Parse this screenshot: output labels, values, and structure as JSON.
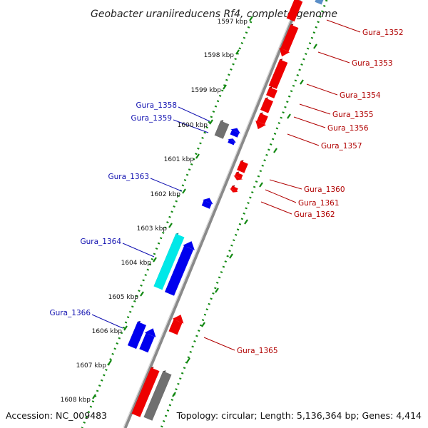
{
  "title": "Geobacter uraniireducens Rf4, complete genome",
  "footer": {
    "accession": "Accession: NC_009483",
    "summary": "Topology: circular; Length: 5,136,364 bp; Genes: 4,414"
  },
  "ticks": [
    "1597 kbp",
    "1598 kbp",
    "1599 kbp",
    "1600 kbp",
    "1601 kbp",
    "1602 kbp",
    "1603 kbp",
    "1604 kbp",
    "1605 kbp",
    "1606 kbp",
    "1607 kbp",
    "1608 kbp"
  ],
  "genes_forward": [
    {
      "label": "Gura_1352"
    },
    {
      "label": "Gura_1353"
    },
    {
      "label": "Gura_1354"
    },
    {
      "label": "Gura_1355"
    },
    {
      "label": "Gura_1356"
    },
    {
      "label": "Gura_1357"
    },
    {
      "label": "Gura_1360"
    },
    {
      "label": "Gura_1361"
    },
    {
      "label": "Gura_1362"
    },
    {
      "label": "Gura_1365"
    }
  ],
  "genes_reverse": [
    {
      "label": "Gura_1358"
    },
    {
      "label": "Gura_1359"
    },
    {
      "label": "Gura_1363"
    },
    {
      "label": "Gura_1364"
    },
    {
      "label": "Gura_1366"
    }
  ],
  "colors": {
    "forward": "#ee0000",
    "reverse": "#0000ee",
    "highlight": "#00e8e8",
    "pseudo": "#707070",
    "backbone": "#888888",
    "ruler": "#118811",
    "label_blue": "#1010b0",
    "label_red": "#b00000"
  }
}
